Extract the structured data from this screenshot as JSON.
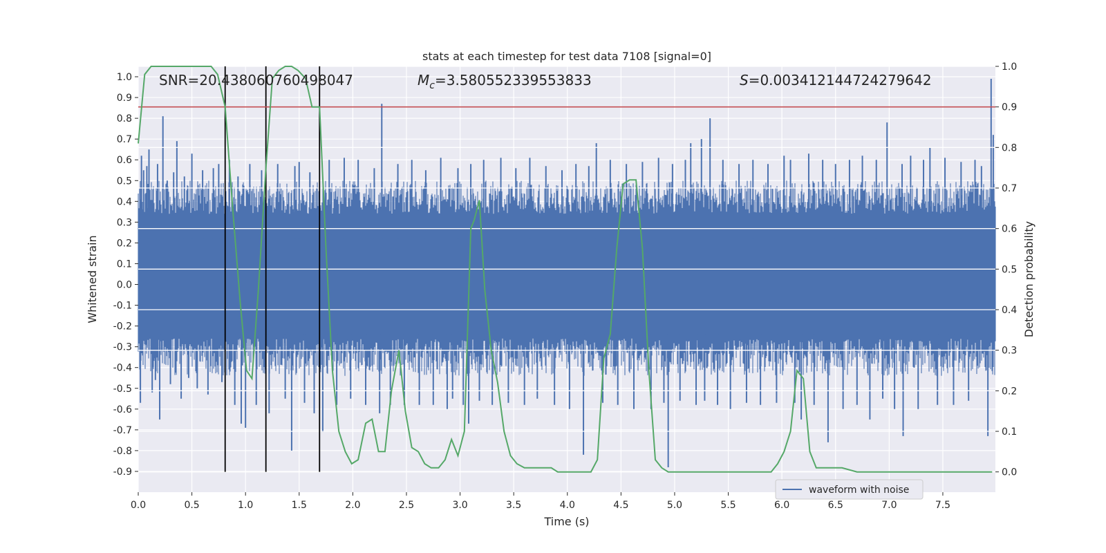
{
  "chart_data": {
    "type": "line",
    "title": "stats at each timestep for test data 7108 [signal=0]",
    "xlabel": "Time (s)",
    "ylabel_left": "Whitened strain",
    "ylabel_right": "Detection probability",
    "xlim": [
      0.0,
      7.99
    ],
    "ylim_left": [
      -1.0,
      1.05
    ],
    "ylim_right": [
      -0.05,
      1.0
    ],
    "x_ticks": [
      "0.0",
      "0.5",
      "1.0",
      "1.5",
      "2.0",
      "2.5",
      "3.0",
      "3.5",
      "4.0",
      "4.5",
      "5.0",
      "5.5",
      "6.0",
      "6.5",
      "7.0",
      "7.5"
    ],
    "x_tick_values": [
      0.0,
      0.5,
      1.0,
      1.5,
      2.0,
      2.5,
      3.0,
      3.5,
      4.0,
      4.5,
      5.0,
      5.5,
      6.0,
      6.5,
      7.0,
      7.5
    ],
    "y_ticks_left": [
      "1.0",
      "0.9",
      "0.8",
      "0.7",
      "0.6",
      "0.5",
      "0.4",
      "0.3",
      "0.2",
      "0.1",
      "0.0",
      "-0.1",
      "-0.2",
      "-0.3",
      "-0.4",
      "-0.5",
      "-0.6",
      "-0.7",
      "-0.8",
      "-0.9"
    ],
    "y_tick_values_left": [
      1.0,
      0.9,
      0.8,
      0.7,
      0.6,
      0.5,
      0.4,
      0.3,
      0.2,
      0.1,
      0.0,
      -0.1,
      -0.2,
      -0.3,
      -0.4,
      -0.5,
      -0.6,
      -0.7,
      -0.8,
      -0.9
    ],
    "y_ticks_right": [
      "1.0",
      "0.9",
      "0.8",
      "0.7",
      "0.6",
      "0.5",
      "0.4",
      "0.3",
      "0.2",
      "0.1",
      "0.0"
    ],
    "y_tick_values_right": [
      1.0,
      0.9,
      0.8,
      0.7,
      0.6,
      0.5,
      0.4,
      0.3,
      0.2,
      0.1,
      0.0
    ],
    "annotations": {
      "snr": "SNR=20.438060760498047",
      "mc_symbol": "M",
      "mc_sub": "c",
      "mc_value": "=3.580552339553833",
      "s_symbol": "S",
      "s_value": "=0.003412144724279642"
    },
    "legend": {
      "label": "waveform with noise",
      "position": "lower right"
    },
    "threshold": {
      "value_right": 0.9,
      "color": "#c44e52"
    },
    "vertical_markers": [
      0.81,
      1.19,
      1.69
    ],
    "strain": {
      "name": "waveform with noise",
      "color": "#4c72b0",
      "core_band": [
        -0.32,
        0.4
      ],
      "duration": 7.99,
      "spikes": [
        [
          0.02,
          -0.57
        ],
        [
          0.03,
          0.62
        ],
        [
          0.05,
          0.55
        ],
        [
          0.08,
          0.57
        ],
        [
          0.1,
          0.65
        ],
        [
          0.13,
          -0.52
        ],
        [
          0.16,
          -0.46
        ],
        [
          0.18,
          0.58
        ],
        [
          0.2,
          -0.65
        ],
        [
          0.23,
          0.81
        ],
        [
          0.27,
          0.5
        ],
        [
          0.3,
          -0.48
        ],
        [
          0.33,
          0.54
        ],
        [
          0.36,
          0.69
        ],
        [
          0.4,
          -0.55
        ],
        [
          0.43,
          0.52
        ],
        [
          0.47,
          -0.45
        ],
        [
          0.5,
          0.63
        ],
        [
          0.55,
          -0.5
        ],
        [
          0.6,
          0.55
        ],
        [
          0.65,
          -0.53
        ],
        [
          0.7,
          0.56
        ],
        [
          0.75,
          0.58
        ],
        [
          0.78,
          -0.47
        ],
        [
          0.85,
          0.6
        ],
        [
          0.9,
          -0.58
        ],
        [
          0.93,
          0.52
        ],
        [
          0.96,
          -0.67
        ],
        [
          1.0,
          -0.69
        ],
        [
          1.04,
          0.58
        ],
        [
          1.1,
          -0.58
        ],
        [
          1.15,
          0.55
        ],
        [
          1.22,
          -0.62
        ],
        [
          1.3,
          0.58
        ],
        [
          1.37,
          -0.55
        ],
        [
          1.43,
          -0.8
        ],
        [
          1.46,
          0.57
        ],
        [
          1.5,
          0.59
        ],
        [
          1.55,
          -0.57
        ],
        [
          1.6,
          0.54
        ],
        [
          1.64,
          -0.62
        ],
        [
          1.72,
          -0.71
        ],
        [
          1.78,
          0.6
        ],
        [
          1.85,
          -0.58
        ],
        [
          1.92,
          0.61
        ],
        [
          1.98,
          -0.55
        ],
        [
          2.05,
          0.6
        ],
        [
          2.12,
          -0.58
        ],
        [
          2.2,
          0.56
        ],
        [
          2.25,
          -0.62
        ],
        [
          2.27,
          0.87
        ],
        [
          2.35,
          -0.58
        ],
        [
          2.42,
          0.58
        ],
        [
          2.48,
          -0.58
        ],
        [
          2.55,
          0.6
        ],
        [
          2.62,
          -0.58
        ],
        [
          2.68,
          0.55
        ],
        [
          2.75,
          -0.58
        ],
        [
          2.82,
          0.61
        ],
        [
          2.88,
          -0.6
        ],
        [
          2.93,
          -0.55
        ],
        [
          2.98,
          0.56
        ],
        [
          3.03,
          -0.58
        ],
        [
          3.08,
          -0.67
        ],
        [
          3.1,
          0.58
        ],
        [
          3.18,
          -0.56
        ],
        [
          3.22,
          0.6
        ],
        [
          3.3,
          -0.58
        ],
        [
          3.38,
          0.61
        ],
        [
          3.45,
          -0.57
        ],
        [
          3.52,
          0.56
        ],
        [
          3.6,
          -0.58
        ],
        [
          3.65,
          0.61
        ],
        [
          3.72,
          -0.55
        ],
        [
          3.8,
          0.57
        ],
        [
          3.88,
          -0.58
        ],
        [
          3.95,
          0.55
        ],
        [
          4.02,
          -0.6
        ],
        [
          4.08,
          0.58
        ],
        [
          4.15,
          -0.82
        ],
        [
          4.2,
          0.57
        ],
        [
          4.27,
          0.68
        ],
        [
          4.33,
          -0.57
        ],
        [
          4.4,
          0.6
        ],
        [
          4.47,
          -0.58
        ],
        [
          4.55,
          0.58
        ],
        [
          4.62,
          -0.6
        ],
        [
          4.7,
          0.59
        ],
        [
          4.78,
          -0.6
        ],
        [
          4.85,
          0.61
        ],
        [
          4.9,
          -0.57
        ],
        [
          4.94,
          -0.88
        ],
        [
          4.98,
          0.58
        ],
        [
          5.05,
          -0.56
        ],
        [
          5.1,
          0.6
        ],
        [
          5.15,
          0.68
        ],
        [
          5.2,
          -0.58
        ],
        [
          5.25,
          0.7
        ],
        [
          5.28,
          -0.56
        ],
        [
          5.33,
          0.8
        ],
        [
          5.4,
          -0.58
        ],
        [
          5.45,
          0.6
        ],
        [
          5.52,
          -0.6
        ],
        [
          5.6,
          0.58
        ],
        [
          5.67,
          -0.57
        ],
        [
          5.73,
          0.6
        ],
        [
          5.8,
          -0.58
        ],
        [
          5.87,
          0.58
        ],
        [
          5.95,
          -0.57
        ],
        [
          6.02,
          0.62
        ],
        [
          6.08,
          0.6
        ],
        [
          6.12,
          -0.57
        ],
        [
          6.18,
          -0.65
        ],
        [
          6.25,
          0.63
        ],
        [
          6.3,
          -0.58
        ],
        [
          6.38,
          0.6
        ],
        [
          6.43,
          -0.76
        ],
        [
          6.5,
          0.58
        ],
        [
          6.57,
          -0.6
        ],
        [
          6.63,
          0.6
        ],
        [
          6.7,
          -0.58
        ],
        [
          6.75,
          0.62
        ],
        [
          6.82,
          -0.65
        ],
        [
          6.88,
          0.6
        ],
        [
          6.94,
          -0.55
        ],
        [
          6.98,
          0.78
        ],
        [
          7.05,
          -0.6
        ],
        [
          7.12,
          0.58
        ],
        [
          7.13,
          -0.73
        ],
        [
          7.2,
          0.62
        ],
        [
          7.27,
          -0.6
        ],
        [
          7.32,
          0.6
        ],
        [
          7.38,
          0.66
        ],
        [
          7.45,
          -0.58
        ],
        [
          7.52,
          0.61
        ],
        [
          7.6,
          -0.58
        ],
        [
          7.67,
          0.59
        ],
        [
          7.74,
          -0.56
        ],
        [
          7.8,
          0.6
        ],
        [
          7.86,
          0.57
        ],
        [
          7.92,
          -0.73
        ],
        [
          7.95,
          0.99
        ],
        [
          7.97,
          0.72
        ]
      ]
    },
    "probability": {
      "name": "detection probability",
      "color": "#55a868",
      "x": [
        0.0,
        0.06,
        0.12,
        0.2,
        0.3,
        0.4,
        0.5,
        0.6,
        0.68,
        0.74,
        0.81,
        0.88,
        0.95,
        1.01,
        1.06,
        1.12,
        1.19,
        1.25,
        1.31,
        1.37,
        1.43,
        1.49,
        1.56,
        1.62,
        1.69,
        1.75,
        1.81,
        1.87,
        1.93,
        1.99,
        2.05,
        2.12,
        2.18,
        2.24,
        2.3,
        2.36,
        2.43,
        2.49,
        2.55,
        2.61,
        2.67,
        2.73,
        2.8,
        2.86,
        2.92,
        2.98,
        3.04,
        3.1,
        3.13,
        3.18,
        3.23,
        3.29,
        3.35,
        3.41,
        3.47,
        3.53,
        3.6,
        3.66,
        3.72,
        3.78,
        3.85,
        3.91,
        3.97,
        4.03,
        4.09,
        4.16,
        4.22,
        4.28,
        4.34,
        4.4,
        4.46,
        4.52,
        4.58,
        4.64,
        4.7,
        4.76,
        4.82,
        4.88,
        4.94,
        5.0,
        5.1,
        5.3,
        5.5,
        5.7,
        5.9,
        5.96,
        6.02,
        6.08,
        6.14,
        6.2,
        6.26,
        6.32,
        6.38,
        6.44,
        6.5,
        6.56,
        6.7,
        6.9,
        7.1,
        7.3,
        7.5,
        7.7,
        7.9,
        7.96
      ],
      "y": [
        0.81,
        0.98,
        1.0,
        1.0,
        1.0,
        1.0,
        1.0,
        1.0,
        1.0,
        0.98,
        0.9,
        0.65,
        0.42,
        0.25,
        0.23,
        0.45,
        0.75,
        0.97,
        0.99,
        1.0,
        1.0,
        0.99,
        0.97,
        0.9,
        0.9,
        0.55,
        0.25,
        0.1,
        0.05,
        0.02,
        0.03,
        0.12,
        0.13,
        0.05,
        0.05,
        0.2,
        0.3,
        0.15,
        0.06,
        0.05,
        0.02,
        0.01,
        0.01,
        0.03,
        0.08,
        0.04,
        0.1,
        0.6,
        0.62,
        0.67,
        0.45,
        0.3,
        0.22,
        0.1,
        0.04,
        0.02,
        0.01,
        0.01,
        0.01,
        0.01,
        0.01,
        0.0,
        0.0,
        0.0,
        0.0,
        0.0,
        0.0,
        0.03,
        0.28,
        0.34,
        0.55,
        0.71,
        0.72,
        0.72,
        0.55,
        0.25,
        0.03,
        0.01,
        0.0,
        0.0,
        0.0,
        0.0,
        0.0,
        0.0,
        0.0,
        0.02,
        0.05,
        0.1,
        0.25,
        0.23,
        0.05,
        0.01,
        0.01,
        0.01,
        0.01,
        0.01,
        0.0,
        0.0,
        0.0,
        0.0,
        0.0,
        0.0,
        0.0,
        0.0
      ]
    }
  }
}
